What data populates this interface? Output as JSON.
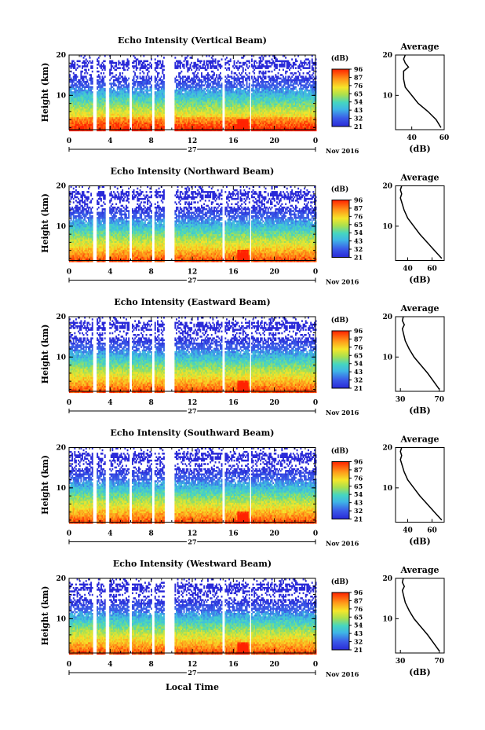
{
  "figure": {
    "x_axis_label": "Local Time",
    "date_label": "Nov 2016",
    "day_label": "27",
    "time_ticks": [
      "0",
      "4",
      "8",
      "12",
      "16",
      "20",
      "0"
    ],
    "height_ticks": [
      "20",
      "10"
    ],
    "y_label": "Height (km)",
    "colorbar_unit": "(dB)",
    "colorbar_ticks": [
      "96",
      "87",
      "76",
      "65",
      "54",
      "43",
      "32",
      "21"
    ],
    "avg_title": "Average",
    "avg_unit": "(dB)",
    "colors": {
      "low": "#2b2bd0",
      "mid": "#39c9c9",
      "high": "#ff2a00"
    }
  },
  "chart_data": [
    {
      "type": "heatmap",
      "title": "Echo Intensity (Vertical Beam)",
      "xlabel": "Local Time",
      "ylabel": "Height (km)",
      "xlim": [
        0,
        24
      ],
      "ylim": [
        1.5,
        20
      ],
      "colorbar": {
        "unit": "(dB)",
        "ticks": [
          21,
          32,
          43,
          54,
          65,
          76,
          87,
          96
        ]
      },
      "data_gaps_hours": [
        [
          2.3,
          2.6
        ],
        [
          3.5,
          3.8
        ],
        [
          5.8,
          6.0
        ],
        [
          8.0,
          8.3
        ],
        [
          9.2,
          10.2
        ],
        [
          14.8,
          15.1
        ],
        [
          17.5,
          17.7
        ]
      ],
      "average_profile": {
        "xlabel": "(dB)",
        "xticks": [
          40,
          60
        ],
        "xlim": [
          30,
          60
        ],
        "height_km": [
          2,
          4,
          6,
          8,
          10,
          12,
          14,
          16,
          17,
          18,
          19,
          20
        ],
        "avg_db": [
          58,
          55,
          50,
          44,
          40,
          36,
          35,
          35,
          38,
          36,
          35,
          36
        ]
      }
    },
    {
      "type": "heatmap",
      "title": "Echo Intensity (Northward Beam)",
      "xlabel": "Local Time",
      "ylabel": "Height (km)",
      "xlim": [
        0,
        24
      ],
      "ylim": [
        1.5,
        20
      ],
      "colorbar": {
        "unit": "(dB)",
        "ticks": [
          21,
          32,
          43,
          54,
          65,
          76,
          87,
          96
        ]
      },
      "data_gaps_hours": [
        [
          2.3,
          2.6
        ],
        [
          3.5,
          3.8
        ],
        [
          5.8,
          6.0
        ],
        [
          8.0,
          8.3
        ],
        [
          9.2,
          10.2
        ],
        [
          14.8,
          15.1
        ],
        [
          17.5,
          17.7
        ]
      ],
      "average_profile": {
        "xlabel": "(dB)",
        "xticks": [
          40,
          60
        ],
        "xlim": [
          30,
          70
        ],
        "height_km": [
          2,
          4,
          6,
          8,
          10,
          12,
          14,
          16,
          17,
          18,
          19,
          20
        ],
        "avg_db": [
          68,
          62,
          56,
          50,
          45,
          40,
          37,
          35,
          34,
          35,
          34,
          35
        ]
      }
    },
    {
      "type": "heatmap",
      "title": "Echo Intensity (Eastward Beam)",
      "xlabel": "Local Time",
      "ylabel": "Height (km)",
      "xlim": [
        0,
        24
      ],
      "ylim": [
        1.5,
        20
      ],
      "colorbar": {
        "unit": "(dB)",
        "ticks": [
          21,
          32,
          43,
          54,
          65,
          76,
          87,
          96
        ]
      },
      "data_gaps_hours": [
        [
          2.3,
          2.6
        ],
        [
          3.5,
          3.8
        ],
        [
          5.8,
          6.0
        ],
        [
          8.0,
          8.3
        ],
        [
          9.2,
          10.2
        ],
        [
          14.8,
          15.1
        ],
        [
          17.5,
          17.7
        ]
      ],
      "average_profile": {
        "xlabel": "(dB)",
        "xticks": [
          30,
          70
        ],
        "xlim": [
          25,
          75
        ],
        "height_km": [
          2,
          4,
          6,
          8,
          10,
          12,
          14,
          16,
          17,
          18,
          19,
          20
        ],
        "avg_db": [
          70,
          64,
          58,
          51,
          44,
          39,
          35,
          33,
          32,
          34,
          32,
          33
        ]
      }
    },
    {
      "type": "heatmap",
      "title": "Echo Intensity (Southward Beam)",
      "xlabel": "Local Time",
      "ylabel": "Height (km)",
      "xlim": [
        0,
        24
      ],
      "ylim": [
        1.5,
        20
      ],
      "colorbar": {
        "unit": "(dB)",
        "ticks": [
          21,
          32,
          43,
          54,
          65,
          76,
          87,
          96
        ]
      },
      "data_gaps_hours": [
        [
          2.3,
          2.6
        ],
        [
          3.5,
          3.8
        ],
        [
          5.8,
          6.0
        ],
        [
          8.0,
          8.3
        ],
        [
          9.2,
          10.2
        ],
        [
          14.8,
          15.1
        ],
        [
          17.5,
          17.7
        ]
      ],
      "average_profile": {
        "xlabel": "(dB)",
        "xticks": [
          40,
          60
        ],
        "xlim": [
          30,
          70
        ],
        "height_km": [
          2,
          4,
          6,
          8,
          10,
          12,
          14,
          16,
          17,
          18,
          19,
          20
        ],
        "avg_db": [
          68,
          62,
          56,
          50,
          45,
          40,
          37,
          35,
          34,
          35,
          34,
          35
        ]
      }
    },
    {
      "type": "heatmap",
      "title": "Echo Intensity (Westward Beam)",
      "xlabel": "Local Time",
      "ylabel": "Height (km)",
      "xlim": [
        0,
        24
      ],
      "ylim": [
        1.5,
        20
      ],
      "colorbar": {
        "unit": "(dB)",
        "ticks": [
          21,
          32,
          43,
          54,
          65,
          76,
          87,
          96
        ]
      },
      "data_gaps_hours": [
        [
          2.3,
          2.6
        ],
        [
          3.5,
          3.8
        ],
        [
          5.8,
          6.0
        ],
        [
          8.0,
          8.3
        ],
        [
          9.2,
          10.2
        ],
        [
          14.8,
          15.1
        ],
        [
          17.5,
          17.7
        ]
      ],
      "average_profile": {
        "xlabel": "(dB)",
        "xticks": [
          30,
          70
        ],
        "xlim": [
          25,
          75
        ],
        "height_km": [
          2,
          4,
          6,
          8,
          10,
          12,
          14,
          16,
          17,
          18,
          19,
          20
        ],
        "avg_db": [
          70,
          64,
          58,
          51,
          44,
          39,
          35,
          33,
          32,
          34,
          32,
          33
        ]
      }
    }
  ]
}
